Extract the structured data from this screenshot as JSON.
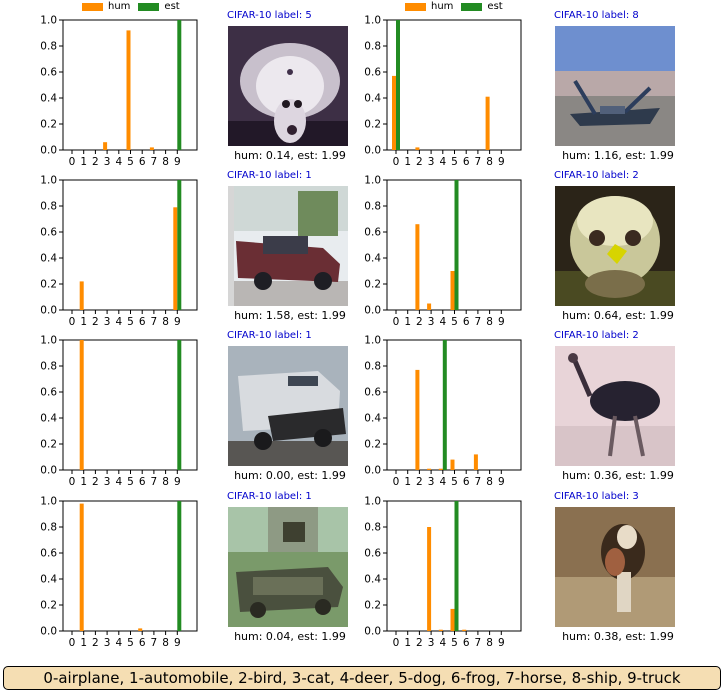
{
  "legend": {
    "hum": "hum",
    "est": "est",
    "hum_color": "#ff8c00",
    "est_color": "#228b22"
  },
  "footer": "0-airplane, 1-automobile, 2-bird, 3-cat, 4-deer, 5-dog, 6-frog, 7-horse, 8-ship, 9-truck",
  "chart_data": [
    {
      "type": "bar",
      "categories": [
        "0",
        "1",
        "2",
        "3",
        "4",
        "5",
        "6",
        "7",
        "8",
        "9"
      ],
      "ylim": [
        0,
        1.0
      ],
      "yticks": [
        "0.0",
        "0.2",
        "0.4",
        "0.6",
        "0.8",
        "1.0"
      ],
      "series": [
        {
          "name": "hum",
          "values": [
            0,
            0,
            0,
            0.06,
            0,
            0.92,
            0,
            0.02,
            0,
            0
          ]
        },
        {
          "name": "est",
          "values": [
            0,
            0,
            0,
            0,
            0,
            0,
            0,
            0,
            0,
            1.0
          ]
        }
      ],
      "image_title": "CIFAR-10 label: 5",
      "caption": "hum: 0.14, est: 1.99",
      "image_kind": "dog"
    },
    {
      "type": "bar",
      "categories": [
        "0",
        "1",
        "2",
        "3",
        "4",
        "5",
        "6",
        "7",
        "8",
        "9"
      ],
      "ylim": [
        0,
        1.0
      ],
      "yticks": [
        "0.0",
        "0.2",
        "0.4",
        "0.6",
        "0.8",
        "1.0"
      ],
      "series": [
        {
          "name": "hum",
          "values": [
            0.57,
            0,
            0.02,
            0,
            0,
            0,
            0,
            0,
            0.41,
            0
          ]
        },
        {
          "name": "est",
          "values": [
            1.0,
            0,
            0,
            0,
            0,
            0,
            0,
            0,
            0,
            0
          ]
        }
      ],
      "image_title": "CIFAR-10 label: 8",
      "caption": "hum: 1.16, est: 1.99",
      "image_kind": "ship"
    },
    {
      "type": "bar",
      "categories": [
        "0",
        "1",
        "2",
        "3",
        "4",
        "5",
        "6",
        "7",
        "8",
        "9"
      ],
      "ylim": [
        0,
        1.0
      ],
      "yticks": [
        "0.0",
        "0.2",
        "0.4",
        "0.6",
        "0.8",
        "1.0"
      ],
      "series": [
        {
          "name": "hum",
          "values": [
            0,
            0.22,
            0,
            0,
            0,
            0,
            0,
            0,
            0,
            0.79
          ]
        },
        {
          "name": "est",
          "values": [
            0,
            0,
            0,
            0,
            0,
            0,
            0,
            0,
            0,
            1.0
          ]
        }
      ],
      "image_title": "CIFAR-10 label: 1",
      "caption": "hum: 1.58, est: 1.99",
      "image_kind": "car-red"
    },
    {
      "type": "bar",
      "categories": [
        "0",
        "1",
        "2",
        "3",
        "4",
        "5",
        "6",
        "7",
        "8",
        "9"
      ],
      "ylim": [
        0,
        1.0
      ],
      "yticks": [
        "0.0",
        "0.2",
        "0.4",
        "0.6",
        "0.8",
        "1.0"
      ],
      "series": [
        {
          "name": "hum",
          "values": [
            0,
            0,
            0.66,
            0.05,
            0,
            0.3,
            0,
            0,
            0,
            0
          ]
        },
        {
          "name": "est",
          "values": [
            0,
            0,
            0,
            0,
            0,
            1.0,
            0,
            0,
            0,
            0
          ]
        }
      ],
      "image_title": "CIFAR-10 label: 2",
      "caption": "hum: 0.64, est: 1.99",
      "image_kind": "bird-yellow"
    },
    {
      "type": "bar",
      "categories": [
        "0",
        "1",
        "2",
        "3",
        "4",
        "5",
        "6",
        "7",
        "8",
        "9"
      ],
      "ylim": [
        0,
        1.0
      ],
      "yticks": [
        "0.0",
        "0.2",
        "0.4",
        "0.6",
        "0.8",
        "1.0"
      ],
      "series": [
        {
          "name": "hum",
          "values": [
            0,
            1.0,
            0,
            0,
            0,
            0,
            0,
            0,
            0,
            0
          ]
        },
        {
          "name": "est",
          "values": [
            0,
            0,
            0,
            0,
            0,
            0,
            0,
            0,
            0,
            1.0
          ]
        }
      ],
      "image_title": "CIFAR-10 label: 1",
      "caption": "hum: 0.00, est: 1.99",
      "image_kind": "car-grey"
    },
    {
      "type": "bar",
      "categories": [
        "0",
        "1",
        "2",
        "3",
        "4",
        "5",
        "6",
        "7",
        "8",
        "9"
      ],
      "ylim": [
        0,
        1.0
      ],
      "yticks": [
        "0.0",
        "0.2",
        "0.4",
        "0.6",
        "0.8",
        "1.0"
      ],
      "series": [
        {
          "name": "hum",
          "values": [
            0,
            0,
            0.77,
            0.01,
            0.01,
            0.08,
            0,
            0.12,
            0,
            0
          ]
        },
        {
          "name": "est",
          "values": [
            0,
            0,
            0,
            0,
            1.0,
            0,
            0,
            0,
            0,
            0
          ]
        }
      ],
      "image_title": "CIFAR-10 label: 2",
      "caption": "hum: 0.36, est: 1.99",
      "image_kind": "ostrich"
    },
    {
      "type": "bar",
      "categories": [
        "0",
        "1",
        "2",
        "3",
        "4",
        "5",
        "6",
        "7",
        "8",
        "9"
      ],
      "ylim": [
        0,
        1.0
      ],
      "yticks": [
        "0.0",
        "0.2",
        "0.4",
        "0.6",
        "0.8",
        "1.0"
      ],
      "series": [
        {
          "name": "hum",
          "values": [
            0,
            0.98,
            0,
            0,
            0,
            0,
            0.02,
            0,
            0,
            0
          ]
        },
        {
          "name": "est",
          "values": [
            0,
            0,
            0,
            0,
            0,
            0,
            0,
            0,
            0,
            1.0
          ]
        }
      ],
      "image_title": "CIFAR-10 label: 1",
      "caption": "hum: 0.04, est: 1.99",
      "image_kind": "car-green"
    },
    {
      "type": "bar",
      "categories": [
        "0",
        "1",
        "2",
        "3",
        "4",
        "5",
        "6",
        "7",
        "8",
        "9"
      ],
      "ylim": [
        0,
        1.0
      ],
      "yticks": [
        "0.0",
        "0.2",
        "0.4",
        "0.6",
        "0.8",
        "1.0"
      ],
      "series": [
        {
          "name": "hum",
          "values": [
            0,
            0,
            0,
            0.8,
            0.01,
            0.17,
            0.01,
            0,
            0,
            0
          ]
        },
        {
          "name": "est",
          "values": [
            0,
            0,
            0,
            0,
            0,
            1.0,
            0,
            0,
            0,
            0
          ]
        }
      ],
      "image_title": "CIFAR-10 label: 3",
      "caption": "hum: 0.38, est: 1.99",
      "image_kind": "cat"
    }
  ]
}
